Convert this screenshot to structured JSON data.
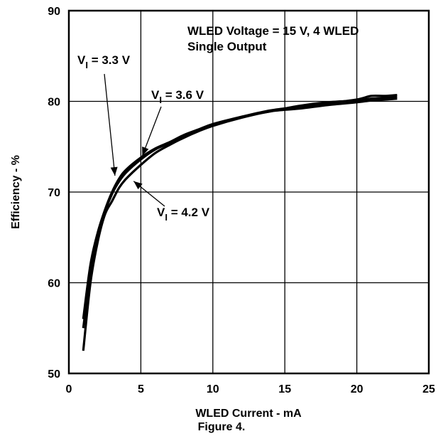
{
  "figure_caption": "Figure 4.",
  "chart_data": {
    "type": "line",
    "xlabel": "WLED Current - mA",
    "ylabel": "Efficiency - %",
    "xlim": [
      0,
      25
    ],
    "ylim": [
      50,
      90
    ],
    "x_ticks": [
      "0",
      "5",
      "10",
      "15",
      "20",
      "25"
    ],
    "y_ticks": [
      "50",
      "60",
      "70",
      "80",
      "90"
    ],
    "grid": true,
    "condition_text": [
      "WLED Voltage = 15 V, 4 WLED",
      "Single Output"
    ],
    "series": [
      {
        "name": "VI = 3.3 V",
        "label": {
          "main": "V",
          "sub": "I",
          "rest": " = 3.3 V"
        },
        "x": [
          1,
          1.5,
          2,
          2.5,
          3,
          3.5,
          4,
          5,
          6,
          7,
          8,
          9,
          10,
          12,
          14,
          16,
          18,
          20,
          21,
          22,
          22.8
        ],
        "y": [
          56,
          62,
          65.5,
          68,
          70,
          71.5,
          72.5,
          73.8,
          74.8,
          75.5,
          76.3,
          76.9,
          77.5,
          78.3,
          79,
          79.4,
          79.8,
          80.2,
          80.6,
          80.6,
          80.7
        ]
      },
      {
        "name": "VI = 3.6 V",
        "label": {
          "main": "V",
          "sub": "I",
          "rest": " = 3.6 V"
        },
        "x": [
          1,
          1.5,
          2,
          2.5,
          3,
          3.5,
          4,
          5,
          6,
          7,
          8,
          9,
          10,
          12,
          14,
          16,
          18,
          20,
          21,
          22,
          22.8
        ],
        "y": [
          55,
          61,
          65,
          67.8,
          69.8,
          71.2,
          72.2,
          73.6,
          74.7,
          75.4,
          76.2,
          76.8,
          77.4,
          78.3,
          78.9,
          79.5,
          79.9,
          80.1,
          80.3,
          80.4,
          80.5
        ]
      },
      {
        "name": "VI = 4.2 V",
        "label": {
          "main": "V",
          "sub": "I",
          "rest": " = 4.2 V"
        },
        "x": [
          1,
          1.5,
          2,
          2.5,
          3,
          3.5,
          4,
          5,
          6,
          7,
          8,
          9,
          10,
          12,
          14,
          16,
          18,
          20,
          21,
          22,
          22.8
        ],
        "y": [
          52.5,
          60,
          64.5,
          67.5,
          69,
          70.5,
          71.5,
          73,
          74.3,
          75.2,
          76,
          76.7,
          77.3,
          78.2,
          78.9,
          79.2,
          79.6,
          79.9,
          80.1,
          80.2,
          80.3
        ]
      }
    ]
  }
}
